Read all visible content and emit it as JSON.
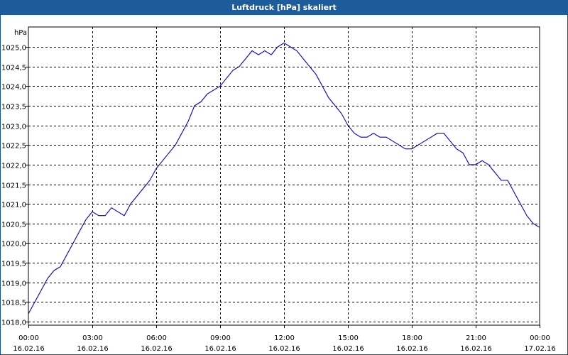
{
  "title": "Luftdruck [hPa] skaliert",
  "chart_data": {
    "type": "line",
    "title": "Luftdruck [hPa] skaliert",
    "ylabel": "hPa",
    "xlabel": "",
    "ylim": [
      1018.0,
      1025.0
    ],
    "xlim": [
      0,
      24
    ],
    "grid": true,
    "y_ticks": [
      "1018,0",
      "1018,5",
      "1019,0",
      "1019,5",
      "1020,0",
      "1020,5",
      "1021,0",
      "1021,5",
      "1022,0",
      "1022,5",
      "1023,0",
      "1023,5",
      "1024,0",
      "1024,5",
      "1025,0"
    ],
    "x_ticks": [
      {
        "time": "00:00",
        "date": "16.02.16"
      },
      {
        "time": "03:00",
        "date": "16.02.16"
      },
      {
        "time": "06:00",
        "date": "16.02.16"
      },
      {
        "time": "09:00",
        "date": "16.02.16"
      },
      {
        "time": "12:00",
        "date": "16.02.16"
      },
      {
        "time": "15:00",
        "date": "16.02.16"
      },
      {
        "time": "18:00",
        "date": "16.02.16"
      },
      {
        "time": "21:00",
        "date": "16.02.16"
      },
      {
        "time": "00:00",
        "date": "17.02.16"
      }
    ],
    "series": [
      {
        "color": "#0000cc",
        "x": [
          0.0,
          0.3,
          0.6,
          0.9,
          1.2,
          1.5,
          1.8,
          2.1,
          2.4,
          2.7,
          3.0,
          3.3,
          3.6,
          3.9,
          4.2,
          4.5,
          4.8,
          5.1,
          5.4,
          5.7,
          6.0,
          6.3,
          6.6,
          6.9,
          7.2,
          7.5,
          7.8,
          8.1,
          8.4,
          8.7,
          9.0,
          9.3,
          9.6,
          9.9,
          10.2,
          10.5,
          10.8,
          11.1,
          11.4,
          11.7,
          12.0,
          12.3,
          12.6,
          12.9,
          13.2,
          13.5,
          13.8,
          14.1,
          14.4,
          14.7,
          15.0,
          15.3,
          15.6,
          15.9,
          16.2,
          16.5,
          16.8,
          17.1,
          17.4,
          17.7,
          18.0,
          18.3,
          18.6,
          18.9,
          19.2,
          19.5,
          19.8,
          20.1,
          20.4,
          20.7,
          21.0,
          21.3,
          21.6,
          21.9,
          22.2,
          22.5,
          22.8,
          23.1,
          23.4,
          23.7,
          24.0
        ],
        "y": [
          1018.2,
          1018.5,
          1018.8,
          1019.1,
          1019.3,
          1019.4,
          1019.7,
          1020.0,
          1020.3,
          1020.6,
          1020.8,
          1020.7,
          1020.7,
          1020.9,
          1020.8,
          1020.7,
          1021.0,
          1021.2,
          1021.4,
          1021.6,
          1021.9,
          1022.1,
          1022.3,
          1022.5,
          1022.8,
          1023.1,
          1023.5,
          1023.6,
          1023.8,
          1023.9,
          1024.0,
          1024.2,
          1024.4,
          1024.5,
          1024.7,
          1024.9,
          1024.8,
          1024.9,
          1024.8,
          1025.0,
          1025.1,
          1025.0,
          1024.9,
          1024.7,
          1024.5,
          1024.3,
          1024.0,
          1023.7,
          1023.5,
          1023.3,
          1023.0,
          1022.8,
          1022.7,
          1022.7,
          1022.8,
          1022.7,
          1022.7,
          1022.6,
          1022.5,
          1022.4,
          1022.4,
          1022.5,
          1022.6,
          1022.7,
          1022.8,
          1022.8,
          1022.6,
          1022.4,
          1022.3,
          1022.0,
          1022.0,
          1022.1,
          1022.0,
          1021.8,
          1021.6,
          1021.6,
          1021.3,
          1021.0,
          1020.7,
          1020.5,
          1020.4
        ]
      }
    ]
  }
}
